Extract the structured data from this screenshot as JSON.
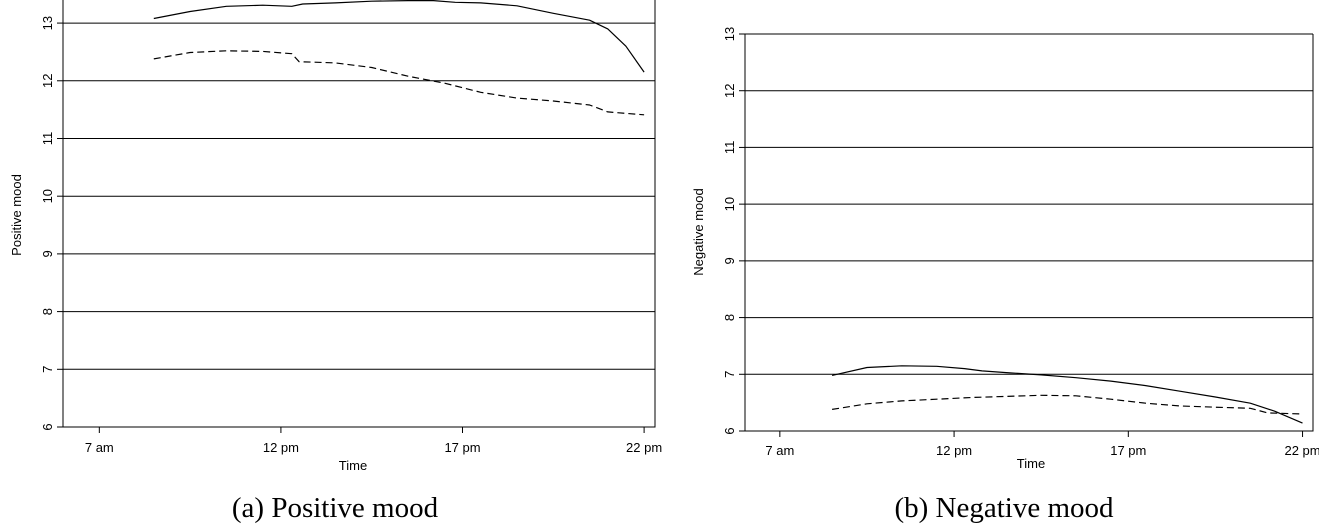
{
  "chart_data": [
    {
      "type": "line",
      "caption": "(a) Positive mood",
      "xlabel": "Time",
      "ylabel": "Positive mood",
      "xlim": [
        6,
        22.3
      ],
      "ylim": [
        6,
        13.4
      ],
      "x_ticks": [
        7,
        12,
        17,
        22
      ],
      "x_tick_labels": [
        "7 am",
        "12 pm",
        "17 pm",
        "22 pm"
      ],
      "y_ticks": [
        6,
        7,
        8,
        9,
        10,
        11,
        12,
        13
      ],
      "y_tick_labels": [
        "6",
        "7",
        "8",
        "9",
        "10",
        "11",
        "12",
        "13"
      ],
      "grid": "horizontal",
      "series": [
        {
          "style": "solid",
          "color": "#000000",
          "x": [
            8.5,
            9.5,
            10.5,
            11.5,
            12.3,
            12.6,
            13.5,
            14.5,
            15.5,
            16.2,
            16.8,
            17.5,
            18.5,
            19.5,
            20.5,
            21.0,
            21.5,
            22.0
          ],
          "y": [
            13.08,
            13.2,
            13.29,
            13.31,
            13.29,
            13.33,
            13.35,
            13.38,
            13.39,
            13.39,
            13.36,
            13.35,
            13.3,
            13.17,
            13.05,
            12.9,
            12.6,
            12.15
          ]
        },
        {
          "style": "dashed",
          "color": "#000000",
          "x": [
            8.5,
            9.5,
            10.5,
            11.5,
            12.3,
            12.5,
            13.5,
            14.5,
            15.5,
            16.5,
            17.5,
            18.5,
            19.5,
            20.5,
            21.0,
            22.0
          ],
          "y": [
            12.38,
            12.49,
            12.52,
            12.51,
            12.47,
            12.33,
            12.31,
            12.23,
            12.08,
            11.96,
            11.8,
            11.7,
            11.65,
            11.58,
            11.46,
            11.41
          ]
        }
      ]
    },
    {
      "type": "line",
      "caption": "(b) Negative mood",
      "xlabel": "Time",
      "ylabel": "Negative mood",
      "xlim": [
        6,
        22.3
      ],
      "ylim": [
        6,
        13
      ],
      "x_ticks": [
        7,
        12,
        17,
        22
      ],
      "x_tick_labels": [
        "7 am",
        "12 pm",
        "17 pm",
        "22 pm"
      ],
      "y_ticks": [
        6,
        7,
        8,
        9,
        10,
        11,
        12,
        13
      ],
      "y_tick_labels": [
        "6",
        "7",
        "8",
        "9",
        "10",
        "11",
        "12",
        "13"
      ],
      "grid": "horizontal",
      "series": [
        {
          "style": "solid",
          "color": "#000000",
          "x": [
            8.5,
            9.5,
            10.5,
            11.5,
            12.3,
            12.8,
            13.5,
            14.5,
            15.5,
            16.5,
            17.5,
            18.5,
            19.5,
            20.5,
            21.2,
            22.0
          ],
          "y": [
            6.98,
            7.12,
            7.15,
            7.14,
            7.1,
            7.06,
            7.03,
            6.99,
            6.94,
            6.88,
            6.8,
            6.7,
            6.6,
            6.49,
            6.35,
            6.14
          ]
        },
        {
          "style": "dashed",
          "color": "#000000",
          "x": [
            8.5,
            9.5,
            10.5,
            11.5,
            12.5,
            13.5,
            14.5,
            15.5,
            16.5,
            17.5,
            18.5,
            19.5,
            20.5,
            21.0,
            22.0
          ],
          "y": [
            6.38,
            6.48,
            6.53,
            6.56,
            6.59,
            6.61,
            6.63,
            6.62,
            6.56,
            6.49,
            6.44,
            6.42,
            6.4,
            6.32,
            6.3
          ]
        }
      ]
    }
  ]
}
